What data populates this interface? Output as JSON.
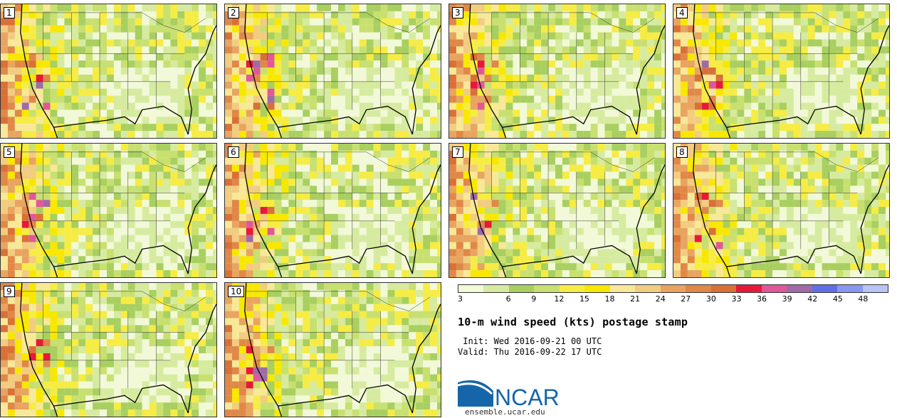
{
  "panels": [
    {
      "label": "1"
    },
    {
      "label": "2"
    },
    {
      "label": "3"
    },
    {
      "label": "4"
    },
    {
      "label": "5"
    },
    {
      "label": "6"
    },
    {
      "label": "7"
    },
    {
      "label": "8"
    },
    {
      "label": "9"
    },
    {
      "label": "10"
    }
  ],
  "legend": {
    "ticks": [
      "3",
      "6",
      "9",
      "12",
      "15",
      "18",
      "21",
      "24",
      "27",
      "30",
      "33",
      "36",
      "39",
      "42",
      "45",
      "48"
    ],
    "colors": [
      "#f2f9d8",
      "#d6eba0",
      "#a8cf60",
      "#c8e070",
      "#f6ec44",
      "#f8e800",
      "#f8e898",
      "#f2cc80",
      "#e8a460",
      "#e08848",
      "#d87038",
      "#e8183a",
      "#e05898",
      "#a06aa8",
      "#6070e8",
      "#8898f0",
      "#b8c4f4"
    ]
  },
  "title": "10-m wind speed (kts) postage stamp",
  "init": " Init: Wed 2016-09-21 00 UTC",
  "valid": "Valid: Thu 2016-09-22 17 UTC",
  "logo": {
    "text": "NCAR",
    "color": "#1466a8"
  },
  "site": "ensemble.ucar.edu"
}
